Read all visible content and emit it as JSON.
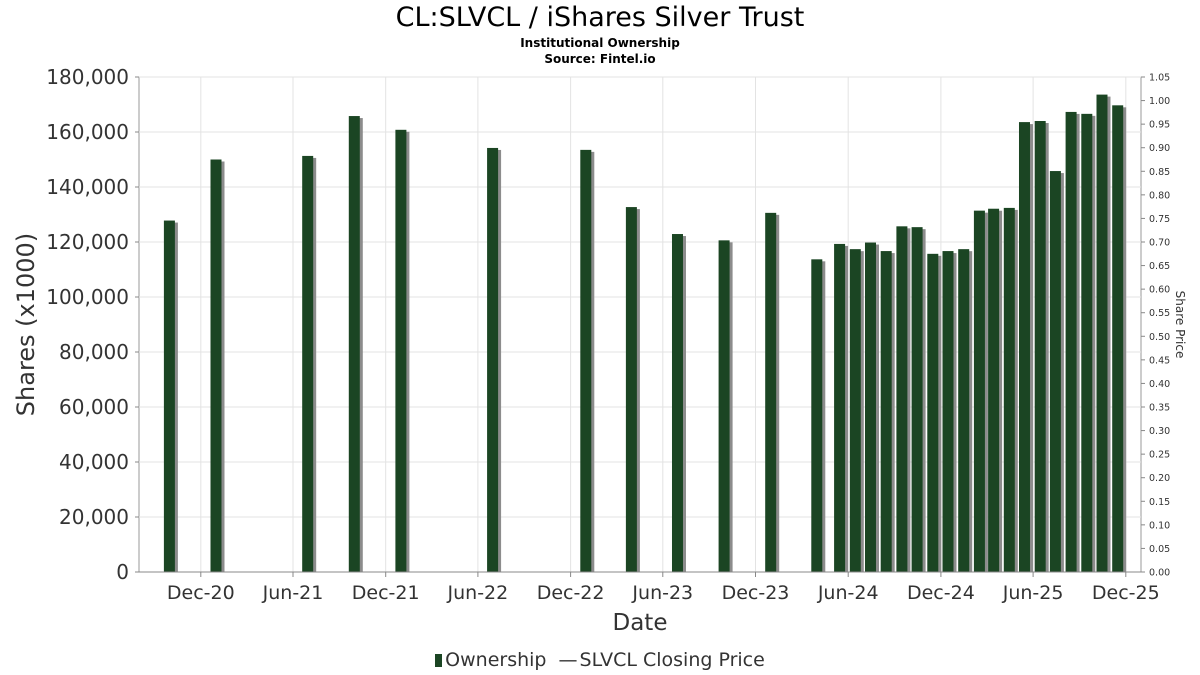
{
  "chart_data": {
    "type": "bar",
    "title": "CL:SLVCL / iShares Silver Trust",
    "subtitle_lines": [
      "Institutional Ownership",
      "Source: Fintel.io"
    ],
    "xlabel": "Date",
    "ylabel": "Shares (x1000)",
    "y2label": "Share Price",
    "ylim": [
      0,
      180000
    ],
    "y2lim": [
      0,
      1.05
    ],
    "yticks": [
      "0",
      "20,000",
      "40,000",
      "60,000",
      "80,000",
      "100,000",
      "120,000",
      "140,000",
      "160,000",
      "180,000"
    ],
    "y2ticks": [
      "0.00",
      "0.05",
      "0.10",
      "0.15",
      "0.20",
      "0.25",
      "0.30",
      "0.35",
      "0.40",
      "0.45",
      "0.50",
      "0.55",
      "0.60",
      "0.65",
      "0.70",
      "0.75",
      "0.80",
      "0.85",
      "0.90",
      "0.95",
      "1.00",
      "1.05"
    ],
    "xticks": [
      "Dec-20",
      "Jun-21",
      "Dec-21",
      "Jun-22",
      "Dec-22",
      "Jun-23",
      "Dec-23",
      "Jun-24",
      "Dec-24",
      "Jun-25",
      "Dec-25"
    ],
    "xtick_dates": [
      "2020-12-01",
      "2021-06-01",
      "2021-12-01",
      "2022-06-01",
      "2022-12-01",
      "2023-06-01",
      "2023-12-01",
      "2024-06-01",
      "2024-12-01",
      "2025-06-01",
      "2025-12-01"
    ],
    "xlim": [
      "2020-08-01",
      "2025-12-31"
    ],
    "grid": true,
    "legend_position": "bottom",
    "series": [
      {
        "name": "Ownership",
        "color": "#1b4523",
        "points": [
          {
            "date": "2020-09-30",
            "value": 127800
          },
          {
            "date": "2020-12-31",
            "value": 150000
          },
          {
            "date": "2021-06-30",
            "value": 151300
          },
          {
            "date": "2021-09-30",
            "value": 165800
          },
          {
            "date": "2021-12-31",
            "value": 160800
          },
          {
            "date": "2022-06-30",
            "value": 154200
          },
          {
            "date": "2022-12-31",
            "value": 153500
          },
          {
            "date": "2023-03-31",
            "value": 132700
          },
          {
            "date": "2023-06-30",
            "value": 122900
          },
          {
            "date": "2023-09-30",
            "value": 120600
          },
          {
            "date": "2023-12-31",
            "value": 130600
          },
          {
            "date": "2024-03-31",
            "value": 113700
          },
          {
            "date": "2024-05-15",
            "value": 119300
          },
          {
            "date": "2024-06-15",
            "value": 117400
          },
          {
            "date": "2024-07-15",
            "value": 119800
          },
          {
            "date": "2024-08-15",
            "value": 116700
          },
          {
            "date": "2024-09-15",
            "value": 125700
          },
          {
            "date": "2024-10-15",
            "value": 125400
          },
          {
            "date": "2024-11-15",
            "value": 115700
          },
          {
            "date": "2024-12-15",
            "value": 116700
          },
          {
            "date": "2025-01-15",
            "value": 117400
          },
          {
            "date": "2025-02-15",
            "value": 131400
          },
          {
            "date": "2025-03-15",
            "value": 132100
          },
          {
            "date": "2025-04-15",
            "value": 132400
          },
          {
            "date": "2025-05-15",
            "value": 163600
          },
          {
            "date": "2025-06-15",
            "value": 164000
          },
          {
            "date": "2025-07-15",
            "value": 145800
          },
          {
            "date": "2025-08-15",
            "value": 167300
          },
          {
            "date": "2025-09-15",
            "value": 166600
          },
          {
            "date": "2025-10-15",
            "value": 173600
          },
          {
            "date": "2025-11-15",
            "value": 169700
          }
        ]
      }
    ],
    "legend": [
      {
        "label": "Ownership",
        "symbol": "bar"
      },
      {
        "label": "SLVCL Closing Price",
        "symbol": "line"
      }
    ]
  }
}
